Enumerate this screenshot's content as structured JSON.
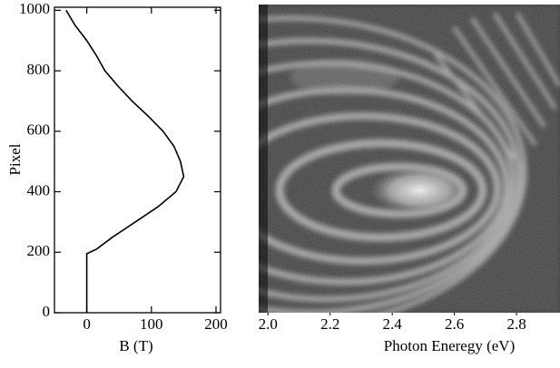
{
  "chart_data": [
    {
      "type": "line",
      "xlabel": "B (T)",
      "ylabel": "Pixel",
      "color": "#000000",
      "x": [
        0,
        0,
        0,
        5,
        15,
        40,
        75,
        110,
        138,
        150,
        145,
        135,
        118,
        95,
        70,
        48,
        28,
        15,
        0,
        -18,
        -32
      ],
      "values": [
        0,
        100,
        195,
        200,
        210,
        250,
        300,
        350,
        400,
        450,
        500,
        550,
        600,
        650,
        700,
        750,
        800,
        850,
        900,
        950,
        1000
      ],
      "xlim": [
        -50,
        207
      ],
      "xticks": [
        0,
        100,
        200
      ],
      "ylim": [
        0,
        1010
      ],
      "yticks": [
        0,
        200,
        400,
        600,
        800,
        1000
      ]
    },
    {
      "type": "image",
      "xlabel": "Photon Eneregy (eV)",
      "xlim": [
        1.97,
        2.94
      ],
      "xticks": [
        {
          "value": 2.0,
          "label": "2.0"
        },
        {
          "value": 2.2,
          "label": "2.2"
        },
        {
          "value": 2.4,
          "label": "2.4"
        },
        {
          "value": 2.6,
          "label": "2.6"
        },
        {
          "value": 2.8,
          "label": "2.8"
        }
      ]
    }
  ]
}
